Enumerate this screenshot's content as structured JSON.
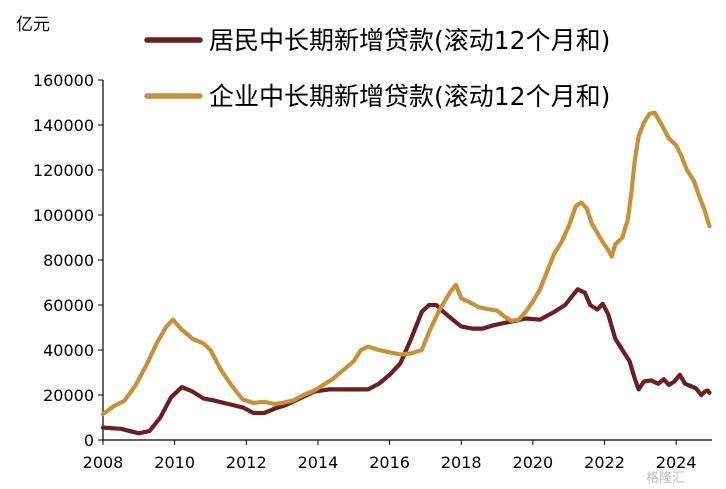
{
  "chart_data": {
    "type": "line",
    "unit_label": "亿元",
    "xlim": [
      2008,
      2025
    ],
    "ylim": [
      0,
      160000
    ],
    "x_ticks": [
      "2008",
      "2010",
      "2012",
      "2014",
      "2016",
      "2018",
      "2020",
      "2022",
      "2024"
    ],
    "y_ticks": [
      "0",
      "20000",
      "40000",
      "60000",
      "80000",
      "100000",
      "120000",
      "140000",
      "160000"
    ],
    "legend_position": "top",
    "grid": false,
    "watermark": "格隆汇",
    "series": [
      {
        "name": "居民中长期新增贷款(滚动12个月和)",
        "color": "#6b1f1f",
        "points": [
          [
            2008.0,
            5500
          ],
          [
            2008.5,
            5000
          ],
          [
            2009.0,
            3000
          ],
          [
            2009.3,
            4000
          ],
          [
            2009.6,
            10000
          ],
          [
            2009.9,
            19000
          ],
          [
            2010.2,
            23500
          ],
          [
            2010.5,
            21500
          ],
          [
            2010.8,
            18500
          ],
          [
            2011.1,
            17500
          ],
          [
            2011.5,
            16000
          ],
          [
            2011.9,
            14500
          ],
          [
            2012.2,
            12000
          ],
          [
            2012.5,
            12000
          ],
          [
            2012.8,
            14000
          ],
          [
            2013.1,
            15500
          ],
          [
            2013.5,
            18500
          ],
          [
            2013.9,
            21500
          ],
          [
            2014.3,
            22500
          ],
          [
            2014.7,
            22500
          ],
          [
            2015.0,
            22500
          ],
          [
            2015.4,
            22500
          ],
          [
            2015.7,
            25000
          ],
          [
            2016.0,
            29000
          ],
          [
            2016.3,
            34000
          ],
          [
            2016.6,
            45000
          ],
          [
            2016.9,
            57000
          ],
          [
            2017.1,
            60000
          ],
          [
            2017.3,
            60000
          ],
          [
            2017.5,
            57000
          ],
          [
            2017.8,
            53000
          ],
          [
            2018.0,
            50500
          ],
          [
            2018.3,
            49500
          ],
          [
            2018.6,
            49500
          ],
          [
            2018.9,
            51000
          ],
          [
            2019.2,
            52000
          ],
          [
            2019.5,
            53000
          ],
          [
            2019.8,
            54000
          ],
          [
            2020.2,
            53500
          ],
          [
            2020.6,
            57000
          ],
          [
            2020.9,
            60000
          ],
          [
            2021.1,
            64000
          ],
          [
            2021.25,
            67000
          ],
          [
            2021.45,
            65500
          ],
          [
            2021.6,
            60000
          ],
          [
            2021.8,
            58000
          ],
          [
            2021.95,
            60500
          ],
          [
            2022.1,
            56000
          ],
          [
            2022.3,
            45000
          ],
          [
            2022.5,
            40000
          ],
          [
            2022.7,
            35000
          ],
          [
            2022.85,
            27000
          ],
          [
            2022.95,
            22500
          ],
          [
            2023.1,
            26000
          ],
          [
            2023.3,
            26500
          ],
          [
            2023.5,
            25000
          ],
          [
            2023.65,
            27000
          ],
          [
            2023.8,
            24500
          ],
          [
            2023.95,
            26000
          ],
          [
            2024.1,
            29000
          ],
          [
            2024.25,
            25000
          ],
          [
            2024.4,
            24000
          ],
          [
            2024.55,
            23000
          ],
          [
            2024.7,
            20000
          ],
          [
            2024.8,
            21500
          ],
          [
            2024.88,
            22000
          ],
          [
            2024.93,
            21000
          ]
        ]
      },
      {
        "name": "企业中长期新增贷款(滚动12个月和)",
        "color": "#c69237",
        "points": [
          [
            2008.0,
            11500
          ],
          [
            2008.3,
            15000
          ],
          [
            2008.6,
            17500
          ],
          [
            2008.9,
            24000
          ],
          [
            2009.2,
            33000
          ],
          [
            2009.5,
            43000
          ],
          [
            2009.75,
            50000
          ],
          [
            2009.95,
            53500
          ],
          [
            2010.2,
            49000
          ],
          [
            2010.5,
            45000
          ],
          [
            2010.8,
            43000
          ],
          [
            2011.0,
            40000
          ],
          [
            2011.3,
            31000
          ],
          [
            2011.6,
            24000
          ],
          [
            2011.9,
            18000
          ],
          [
            2012.2,
            16500
          ],
          [
            2012.5,
            17000
          ],
          [
            2012.8,
            16000
          ],
          [
            2013.0,
            16500
          ],
          [
            2013.3,
            17500
          ],
          [
            2013.6,
            20000
          ],
          [
            2013.9,
            22000
          ],
          [
            2014.1,
            24000
          ],
          [
            2014.4,
            27000
          ],
          [
            2014.7,
            31000
          ],
          [
            2015.0,
            35000
          ],
          [
            2015.2,
            40000
          ],
          [
            2015.4,
            41500
          ],
          [
            2015.7,
            40000
          ],
          [
            2016.0,
            39000
          ],
          [
            2016.3,
            38000
          ],
          [
            2016.6,
            38500
          ],
          [
            2016.9,
            40000
          ],
          [
            2017.1,
            48000
          ],
          [
            2017.4,
            58000
          ],
          [
            2017.7,
            66000
          ],
          [
            2017.85,
            69000
          ],
          [
            2018.0,
            63000
          ],
          [
            2018.2,
            61500
          ],
          [
            2018.5,
            59000
          ],
          [
            2018.8,
            58000
          ],
          [
            2019.0,
            57500
          ],
          [
            2019.2,
            55000
          ],
          [
            2019.4,
            53000
          ],
          [
            2019.6,
            53500
          ],
          [
            2019.8,
            57000
          ],
          [
            2020.0,
            61500
          ],
          [
            2020.2,
            67000
          ],
          [
            2020.4,
            75000
          ],
          [
            2020.6,
            83000
          ],
          [
            2020.8,
            88000
          ],
          [
            2021.0,
            95000
          ],
          [
            2021.2,
            104000
          ],
          [
            2021.35,
            105500
          ],
          [
            2021.5,
            103000
          ],
          [
            2021.65,
            96000
          ],
          [
            2021.8,
            92000
          ],
          [
            2021.95,
            88000
          ],
          [
            2022.1,
            84500
          ],
          [
            2022.2,
            81500
          ],
          [
            2022.3,
            87000
          ],
          [
            2022.5,
            90000
          ],
          [
            2022.65,
            98000
          ],
          [
            2022.75,
            110000
          ],
          [
            2022.85,
            125000
          ],
          [
            2022.95,
            135000
          ],
          [
            2023.1,
            141000
          ],
          [
            2023.25,
            145000
          ],
          [
            2023.4,
            145500
          ],
          [
            2023.6,
            140000
          ],
          [
            2023.8,
            134000
          ],
          [
            2024.0,
            131000
          ],
          [
            2024.15,
            126000
          ],
          [
            2024.3,
            120000
          ],
          [
            2024.5,
            115000
          ],
          [
            2024.65,
            108000
          ],
          [
            2024.8,
            102000
          ],
          [
            2024.87,
            98000
          ],
          [
            2024.93,
            95000
          ]
        ]
      }
    ]
  }
}
